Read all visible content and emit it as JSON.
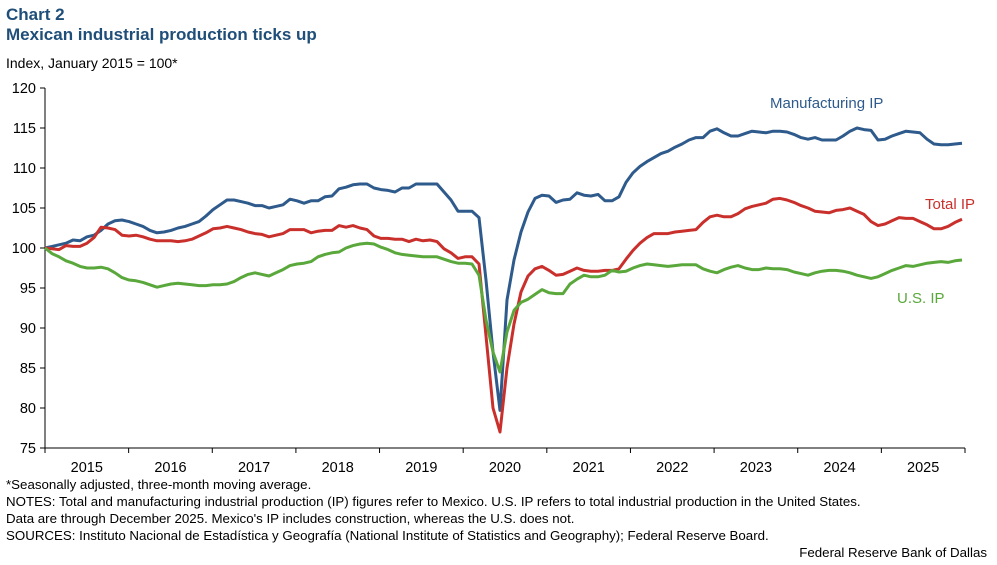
{
  "chart_data": {
    "type": "line",
    "title": "Chart 2",
    "subtitle": "Mexican industrial production ticks up",
    "ylabel": "Index, January 2015 = 100*",
    "ylim": [
      75,
      120
    ],
    "yticks": [
      120,
      115,
      110,
      105,
      100,
      95,
      90,
      85,
      80,
      75
    ],
    "xlim": [
      "2015-01",
      "2025-12"
    ],
    "xticks": [
      "2015",
      "2016",
      "2017",
      "2018",
      "2019",
      "2020",
      "2021",
      "2022",
      "2023",
      "2024",
      "2025"
    ],
    "grid": false,
    "legend": "inline labels",
    "x": [
      "2015-01",
      "2015-02",
      "2015-03",
      "2015-04",
      "2015-05",
      "2015-06",
      "2015-07",
      "2015-08",
      "2015-09",
      "2015-10",
      "2015-11",
      "2015-12",
      "2016-01",
      "2016-02",
      "2016-03",
      "2016-04",
      "2016-05",
      "2016-06",
      "2016-07",
      "2016-08",
      "2016-09",
      "2016-10",
      "2016-11",
      "2016-12",
      "2017-01",
      "2017-02",
      "2017-03",
      "2017-04",
      "2017-05",
      "2017-06",
      "2017-07",
      "2017-08",
      "2017-09",
      "2017-10",
      "2017-11",
      "2017-12",
      "2018-01",
      "2018-02",
      "2018-03",
      "2018-04",
      "2018-05",
      "2018-06",
      "2018-07",
      "2018-08",
      "2018-09",
      "2018-10",
      "2018-11",
      "2018-12",
      "2019-01",
      "2019-02",
      "2019-03",
      "2019-04",
      "2019-05",
      "2019-06",
      "2019-07",
      "2019-08",
      "2019-09",
      "2019-10",
      "2019-11",
      "2019-12",
      "2020-01",
      "2020-02",
      "2020-03",
      "2020-04",
      "2020-05",
      "2020-06",
      "2020-07",
      "2020-08",
      "2020-09",
      "2020-10",
      "2020-11",
      "2020-12",
      "2021-01",
      "2021-02",
      "2021-03",
      "2021-04",
      "2021-05",
      "2021-06",
      "2021-07",
      "2021-08",
      "2021-09",
      "2021-10",
      "2021-11",
      "2021-12",
      "2022-01",
      "2022-02",
      "2022-03",
      "2022-04",
      "2022-05",
      "2022-06",
      "2022-07",
      "2022-08",
      "2022-09",
      "2022-10",
      "2022-11",
      "2022-12",
      "2023-01",
      "2023-02",
      "2023-03",
      "2023-04",
      "2023-05",
      "2023-06",
      "2023-07",
      "2023-08",
      "2023-09",
      "2023-10",
      "2023-11",
      "2023-12",
      "2024-01",
      "2024-02",
      "2024-03",
      "2024-04",
      "2024-05",
      "2024-06",
      "2024-07",
      "2024-08",
      "2024-09",
      "2024-10",
      "2024-11",
      "2024-12",
      "2025-01",
      "2025-02",
      "2025-03",
      "2025-04",
      "2025-05",
      "2025-06",
      "2025-07",
      "2025-08",
      "2025-09",
      "2025-10",
      "2025-11",
      "2025-12"
    ],
    "series": [
      {
        "name": "Manufacturing IP",
        "color": "#2e5a8c",
        "values": [
          100,
          100.2,
          100.4,
          100.6,
          101,
          100.9,
          101.4,
          101.6,
          102.2,
          103,
          103.4,
          103.5,
          103.3,
          103,
          102.7,
          102.2,
          101.9,
          102,
          102.2,
          102.5,
          102.7,
          103,
          103.3,
          104,
          104.8,
          105.4,
          106,
          106,
          105.8,
          105.6,
          105.3,
          105.3,
          105,
          105.2,
          105.4,
          106.1,
          105.9,
          105.6,
          105.9,
          105.9,
          106.4,
          106.5,
          107.4,
          107.6,
          107.9,
          108,
          108,
          107.5,
          107.3,
          107.2,
          107,
          107.5,
          107.5,
          108,
          108,
          108,
          108,
          107,
          106,
          104.6,
          104.6,
          104.6,
          103.8,
          96,
          87,
          79.7,
          93.5,
          98.5,
          102,
          104.5,
          106.2,
          106.6,
          106.5,
          105.7,
          106,
          106.1,
          106.9,
          106.6,
          106.5,
          106.7,
          105.9,
          105.9,
          106.4,
          108.2,
          109.4,
          110.2,
          110.8,
          111.3,
          111.8,
          112.1,
          112.6,
          113,
          113.5,
          113.8,
          113.8,
          114.6,
          114.9,
          114.4,
          114,
          114,
          114.3,
          114.6,
          114.5,
          114.4,
          114.6,
          114.6,
          114.5,
          114.2,
          113.8,
          113.6,
          113.8,
          113.5,
          113.5,
          113.5,
          114,
          114.6,
          115,
          114.8,
          114.7,
          113.5,
          113.6,
          114,
          114.3,
          114.6,
          114.5,
          114.4,
          113.6,
          113,
          112.9,
          112.9,
          113,
          113.1
        ]
      },
      {
        "name": "Total IP",
        "color": "#c9302c",
        "values": [
          100,
          99.9,
          99.8,
          100.3,
          100.2,
          100.2,
          100.6,
          101.3,
          102.6,
          102.5,
          102.3,
          101.6,
          101.5,
          101.6,
          101.4,
          101.1,
          100.9,
          100.9,
          100.9,
          100.8,
          100.9,
          101.1,
          101.5,
          101.9,
          102.4,
          102.5,
          102.7,
          102.5,
          102.3,
          102,
          101.8,
          101.7,
          101.4,
          101.6,
          101.8,
          102.3,
          102.3,
          102.3,
          101.9,
          102.1,
          102.2,
          102.2,
          102.8,
          102.6,
          102.8,
          102.5,
          102.3,
          101.5,
          101.2,
          101.2,
          101.1,
          101.1,
          100.8,
          101.1,
          100.9,
          101,
          100.8,
          99.9,
          99.4,
          98.7,
          98.9,
          98.9,
          98,
          89,
          80,
          77,
          85,
          90.5,
          94.5,
          96.5,
          97.4,
          97.7,
          97.2,
          96.6,
          96.7,
          97.1,
          97.5,
          97.2,
          97.1,
          97.1,
          97.2,
          97.2,
          97.4,
          98.6,
          99.7,
          100.6,
          101.3,
          101.8,
          101.8,
          101.8,
          102,
          102.1,
          102.2,
          102.3,
          103.2,
          103.9,
          104.1,
          103.9,
          103.9,
          104.3,
          104.9,
          105.2,
          105.4,
          105.6,
          106.1,
          106.2,
          106,
          105.7,
          105.3,
          105,
          104.6,
          104.5,
          104.4,
          104.7,
          104.8,
          105,
          104.6,
          104.2,
          103.3,
          102.8,
          103,
          103.4,
          103.8,
          103.7,
          103.7,
          103.3,
          102.9,
          102.4,
          102.4,
          102.7,
          103.2,
          103.6
        ]
      },
      {
        "name": "U.S. IP",
        "color": "#5aa83c",
        "values": [
          100,
          99.3,
          98.9,
          98.4,
          98.1,
          97.7,
          97.5,
          97.5,
          97.6,
          97.4,
          96.9,
          96.3,
          96,
          95.9,
          95.7,
          95.4,
          95.1,
          95.3,
          95.5,
          95.6,
          95.5,
          95.4,
          95.3,
          95.3,
          95.4,
          95.4,
          95.5,
          95.8,
          96.3,
          96.7,
          96.9,
          96.7,
          96.5,
          96.9,
          97.3,
          97.8,
          98,
          98.1,
          98.3,
          98.9,
          99.2,
          99.4,
          99.5,
          100,
          100.3,
          100.5,
          100.6,
          100.5,
          100.1,
          99.8,
          99.4,
          99.2,
          99.1,
          99,
          98.9,
          98.9,
          98.9,
          98.6,
          98.3,
          98.1,
          98.1,
          98,
          96.6,
          91,
          87,
          84.5,
          89.5,
          92.2,
          93.2,
          93.6,
          94.2,
          94.8,
          94.4,
          94.3,
          94.3,
          95.5,
          96.1,
          96.6,
          96.4,
          96.4,
          96.6,
          97.2,
          97,
          97.1,
          97.5,
          97.8,
          98,
          97.9,
          97.8,
          97.7,
          97.8,
          97.9,
          97.9,
          97.9,
          97.4,
          97.1,
          96.9,
          97.3,
          97.6,
          97.8,
          97.5,
          97.3,
          97.3,
          97.5,
          97.4,
          97.4,
          97.3,
          97,
          96.8,
          96.6,
          96.9,
          97.1,
          97.2,
          97.2,
          97.1,
          96.9,
          96.6,
          96.4,
          96.2,
          96.4,
          96.8,
          97.2,
          97.5,
          97.8,
          97.7,
          97.9,
          98.1,
          98.2,
          98.3,
          98.2,
          98.4,
          98.5
        ]
      }
    ]
  },
  "notes": {
    "footnote": "*Seasonally adjusted, three-month moving average.",
    "notes1": "NOTES: Total and manufacturing industrial production (IP) figures refer to Mexico. U.S. IP refers to total industrial production in the United States.",
    "notes2": "Data are through December 2025. Mexico's IP includes construction, whereas the U.S. does not.",
    "sources": "SOURCES: Instituto Nacional de Estadística y Geografía (National Institute of Statistics and Geography); Federal Reserve Board.",
    "credit": "Federal Reserve Bank of Dallas"
  }
}
